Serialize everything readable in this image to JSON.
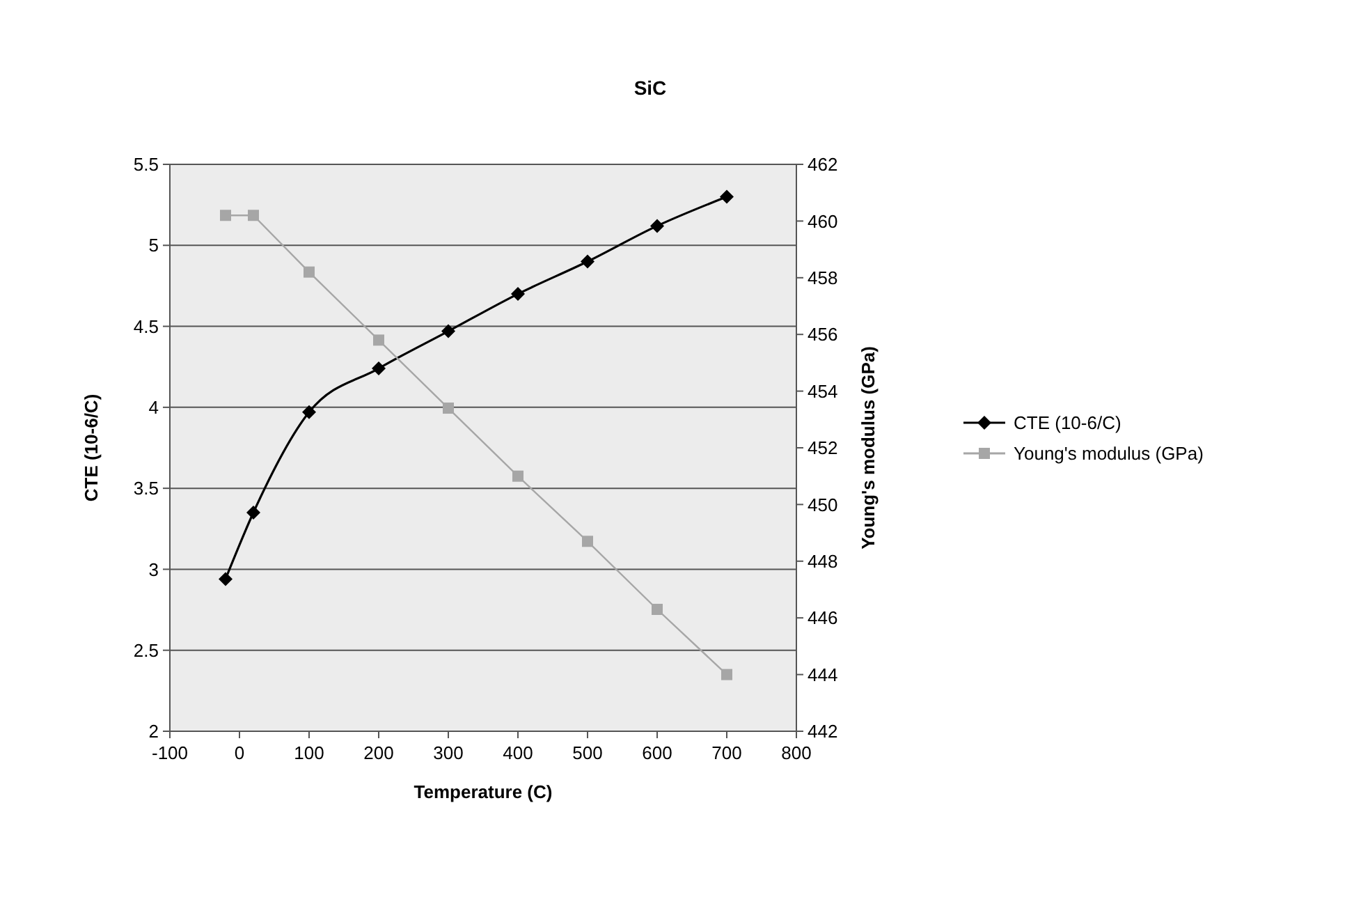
{
  "chart_data": {
    "type": "line",
    "title": "SiC",
    "xlabel": "Temperature (C)",
    "ylabel": "CTE (10-6/C)",
    "y2label": "Young's modulus (GPa)",
    "x": [
      -20,
      20,
      100,
      200,
      300,
      400,
      500,
      600,
      700
    ],
    "series": [
      {
        "name": "CTE (10-6/C)",
        "color": "#000000",
        "marker": "diamond",
        "values": [
          2.94,
          3.35,
          3.97,
          4.24,
          4.47,
          4.7,
          4.9,
          5.12,
          5.3
        ]
      },
      {
        "name": "Young's modulus (GPa)",
        "color": "#a6a6a6",
        "marker": "square",
        "axis": "y2",
        "values": [
          460.2,
          460.2,
          458.2,
          455.8,
          453.4,
          451.0,
          448.7,
          446.3,
          444.0
        ]
      }
    ],
    "xlim": [
      -100,
      800
    ],
    "xticks": [
      -100,
      0,
      100,
      200,
      300,
      400,
      500,
      600,
      700,
      800
    ],
    "ylim": [
      2,
      5.5
    ],
    "yticks": [
      2,
      2.5,
      3,
      3.5,
      4,
      4.5,
      5,
      5.5
    ],
    "y2lim": [
      442,
      462
    ],
    "y2ticks": [
      442,
      444,
      446,
      448,
      450,
      452,
      454,
      456,
      458,
      460,
      462
    ],
    "grid": "y",
    "legend": "right",
    "line_style": "solid"
  }
}
